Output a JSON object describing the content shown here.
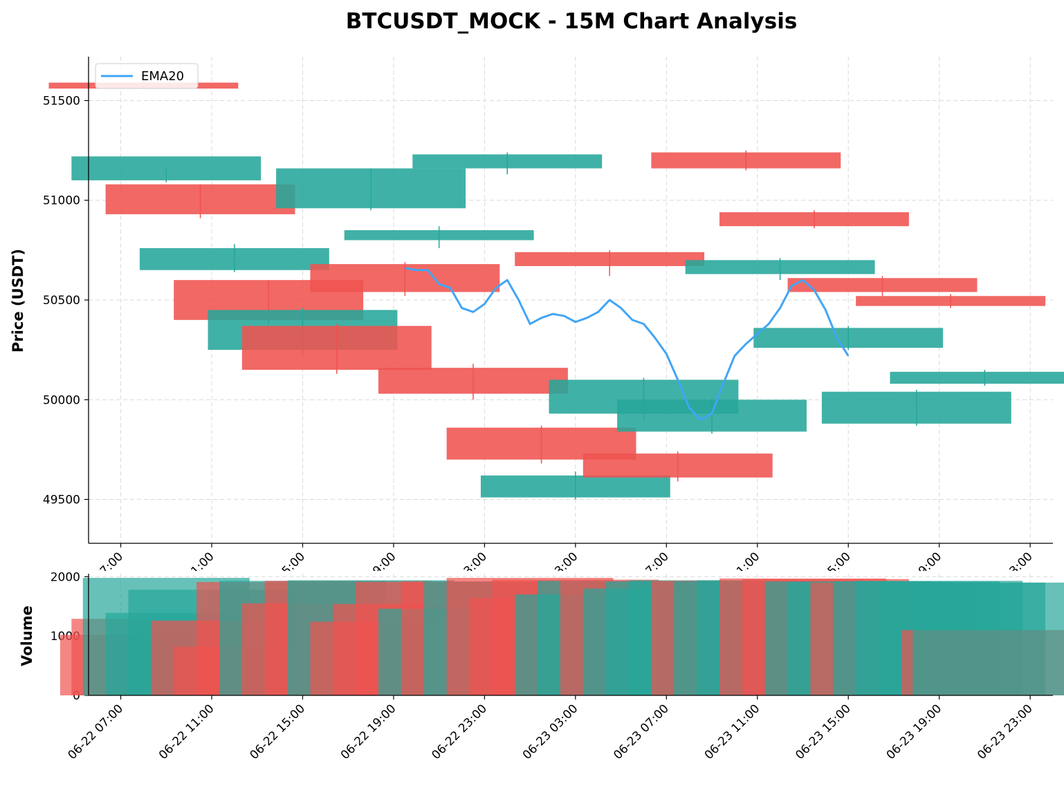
{
  "chart_data": [
    {
      "type": "candlestick",
      "title": "BTCUSDT_MOCK - 15M Chart Analysis",
      "xlabel": "",
      "ylabel": "Price (USDT)",
      "ylim": [
        49280,
        51720
      ],
      "yticks": [
        49500,
        50000,
        50500,
        51000,
        51500
      ],
      "xlim": [
        "2022-06-22 05:35",
        "2022-06-24 00:00"
      ],
      "xticks": [
        "06-22 07:00",
        "06-22 11:00",
        "06-22 15:00",
        "06-22 19:00",
        "06-22 23:00",
        "06-23 03:00",
        "06-23 07:00",
        "06-23 11:00",
        "06-23 15:00",
        "06-23 19:00",
        "06-23 23:00"
      ],
      "grid": true,
      "legend": {
        "placement": "top-left",
        "entries": [
          "EMA20"
        ]
      },
      "colors": {
        "up": "#26a69a",
        "down": "#ef5350",
        "ema": "#42a5f5"
      },
      "candles": [
        [
          "2022-06-22 08:00",
          51560,
          51590,
          51600,
          51560,
          "down"
        ],
        [
          "2022-06-22 09:00",
          51220,
          51100,
          51160,
          51090,
          "up"
        ],
        [
          "2022-06-22 10:30",
          51080,
          50930,
          51080,
          50910,
          "down"
        ],
        [
          "2022-06-22 12:00",
          50760,
          50650,
          50780,
          50640,
          "up"
        ],
        [
          "2022-06-22 13:30",
          50600,
          50400,
          50600,
          50380,
          "down"
        ],
        [
          "2022-06-22 15:00",
          50450,
          50250,
          50460,
          50230,
          "up"
        ],
        [
          "2022-06-22 16:30",
          50370,
          50150,
          50380,
          50130,
          "down"
        ],
        [
          "2022-06-22 18:00",
          51160,
          50960,
          51160,
          50950,
          "up"
        ],
        [
          "2022-06-22 19:30",
          50680,
          50540,
          50690,
          50520,
          "down"
        ],
        [
          "2022-06-22 21:00",
          50850,
          50800,
          50870,
          50760,
          "up"
        ],
        [
          "2022-06-22 22:30",
          50160,
          50030,
          50180,
          50000,
          "down"
        ],
        [
          "2022-06-23 00:00",
          51230,
          51160,
          51240,
          51130,
          "up"
        ],
        [
          "2022-06-23 01:30",
          49860,
          49700,
          49870,
          49680,
          "down"
        ],
        [
          "2022-06-23 03:00",
          49620,
          49510,
          49640,
          49500,
          "up"
        ],
        [
          "2022-06-23 04:30",
          50740,
          50670,
          50750,
          50620,
          "down"
        ],
        [
          "2022-06-23 06:00",
          50100,
          49930,
          50110,
          49900,
          "up"
        ],
        [
          "2022-06-23 07:30",
          49730,
          49610,
          49740,
          49590,
          "down"
        ],
        [
          "2022-06-23 09:00",
          50000,
          49840,
          50010,
          49830,
          "up"
        ],
        [
          "2022-06-23 10:30",
          51240,
          51160,
          51250,
          51150,
          "down"
        ],
        [
          "2022-06-23 12:00",
          50700,
          50630,
          50710,
          50600,
          "up"
        ],
        [
          "2022-06-23 13:30",
          50940,
          50870,
          50950,
          50860,
          "down"
        ],
        [
          "2022-06-23 15:00",
          50360,
          50260,
          50370,
          50250,
          "up"
        ],
        [
          "2022-06-23 16:30",
          50610,
          50540,
          50620,
          50520,
          "down"
        ],
        [
          "2022-06-23 18:00",
          50040,
          49880,
          50050,
          49870,
          "up"
        ],
        [
          "2022-06-23 19:30",
          50520,
          50470,
          50530,
          50460,
          "down"
        ],
        [
          "2022-06-23 21:00",
          50140,
          50080,
          50150,
          50070,
          "up"
        ]
      ],
      "ema20": {
        "name": "EMA20",
        "x": [
          "2022-06-22 19:30",
          "2022-06-22 20:00",
          "2022-06-22 20:30",
          "2022-06-22 21:00",
          "2022-06-22 21:30",
          "2022-06-22 22:00",
          "2022-06-22 22:30",
          "2022-06-22 23:00",
          "2022-06-22 23:30",
          "2022-06-23 00:00",
          "2022-06-23 00:30",
          "2022-06-23 01:00",
          "2022-06-23 01:30",
          "2022-06-23 02:00",
          "2022-06-23 02:30",
          "2022-06-23 03:00",
          "2022-06-23 03:30",
          "2022-06-23 04:00",
          "2022-06-23 04:30",
          "2022-06-23 05:00",
          "2022-06-23 05:30",
          "2022-06-23 06:00",
          "2022-06-23 06:30",
          "2022-06-23 07:00",
          "2022-06-23 07:30",
          "2022-06-23 08:00",
          "2022-06-23 08:30",
          "2022-06-23 09:00",
          "2022-06-23 09:30",
          "2022-06-23 10:00",
          "2022-06-23 10:30",
          "2022-06-23 11:00",
          "2022-06-23 11:30",
          "2022-06-23 12:00",
          "2022-06-23 12:30",
          "2022-06-23 13:00",
          "2022-06-23 13:30",
          "2022-06-23 14:00",
          "2022-06-23 14:30",
          "2022-06-23 15:00"
        ],
        "values": [
          50660,
          50650,
          50650,
          50580,
          50560,
          50460,
          50440,
          50480,
          50560,
          50600,
          50500,
          50380,
          50410,
          50430,
          50420,
          50390,
          50410,
          50440,
          50500,
          50460,
          50400,
          50380,
          50310,
          50230,
          50100,
          49960,
          49900,
          49930,
          50080,
          50220,
          50280,
          50330,
          50380,
          50460,
          50570,
          50600,
          50550,
          50450,
          50310,
          50220
        ]
      }
    },
    {
      "type": "bar",
      "title": "",
      "xlabel": "",
      "ylabel": "Volume",
      "ylim": [
        0,
        2050
      ],
      "yticks": [
        0,
        1000,
        2000
      ],
      "xticks": [
        "06-22 07:00",
        "06-22 11:00",
        "06-22 15:00",
        "06-22 19:00",
        "06-22 23:00",
        "06-23 03:00",
        "06-23 07:00",
        "06-23 11:00",
        "06-23 15:00",
        "06-23 19:00",
        "06-23 23:00"
      ],
      "grid": true,
      "bars": [
        [
          "2022-06-22 08:00",
          1020,
          "down"
        ],
        [
          "2022-06-22 08:30",
          1290,
          "down"
        ],
        [
          "2022-06-22 09:00",
          1980,
          "up"
        ],
        [
          "2022-06-22 10:00",
          1390,
          "up"
        ],
        [
          "2022-06-22 11:00",
          1780,
          "up"
        ],
        [
          "2022-06-22 12:00",
          1260,
          "down"
        ],
        [
          "2022-06-22 13:00",
          820,
          "down"
        ],
        [
          "2022-06-22 14:00",
          1910,
          "down"
        ],
        [
          "2022-06-22 15:00",
          1930,
          "up"
        ],
        [
          "2022-06-22 16:00",
          1550,
          "down"
        ],
        [
          "2022-06-22 17:00",
          1930,
          "down"
        ],
        [
          "2022-06-22 18:00",
          1940,
          "up"
        ],
        [
          "2022-06-22 19:00",
          1240,
          "down"
        ],
        [
          "2022-06-22 20:00",
          1540,
          "down"
        ],
        [
          "2022-06-22 21:00",
          1910,
          "down"
        ],
        [
          "2022-06-22 22:00",
          1460,
          "up"
        ],
        [
          "2022-06-22 23:00",
          1920,
          "down"
        ],
        [
          "2022-06-23 00:00",
          1920,
          "up"
        ],
        [
          "2022-06-23 01:00",
          1980,
          "down"
        ],
        [
          "2022-06-23 02:00",
          1640,
          "down"
        ],
        [
          "2022-06-23 03:00",
          1950,
          "down"
        ],
        [
          "2022-06-23 04:00",
          1700,
          "up"
        ],
        [
          "2022-06-23 05:00",
          1930,
          "up"
        ],
        [
          "2022-06-23 06:00",
          1930,
          "down"
        ],
        [
          "2022-06-23 07:00",
          1800,
          "up"
        ],
        [
          "2022-06-23 08:00",
          1920,
          "up"
        ],
        [
          "2022-06-23 09:00",
          1940,
          "up"
        ],
        [
          "2022-06-23 10:00",
          1930,
          "down"
        ],
        [
          "2022-06-23 11:00",
          1920,
          "up"
        ],
        [
          "2022-06-23 12:00",
          1940,
          "up"
        ],
        [
          "2022-06-23 13:00",
          1970,
          "down"
        ],
        [
          "2022-06-23 14:00",
          1960,
          "down"
        ],
        [
          "2022-06-23 15:00",
          1920,
          "up"
        ],
        [
          "2022-06-23 16:00",
          1910,
          "up"
        ],
        [
          "2022-06-23 17:00",
          1900,
          "down"
        ],
        [
          "2022-06-23 18:00",
          1920,
          "up"
        ],
        [
          "2022-06-23 19:00",
          1930,
          "up"
        ],
        [
          "2022-06-23 20:00",
          1900,
          "up"
        ],
        [
          "2022-06-23 21:00",
          1100,
          "down"
        ],
        [
          "2022-06-23 21:30",
          1900,
          "up"
        ]
      ]
    }
  ]
}
